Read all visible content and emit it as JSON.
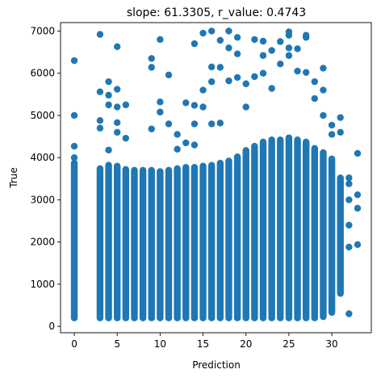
{
  "chart_data": {
    "type": "scatter",
    "title": "slope: 61.3305, r_value: 0.4743",
    "xlabel": "Prediction",
    "ylabel": "True",
    "xlim": [
      -1.6,
      34.6
    ],
    "ylim": [
      -150,
      7200
    ],
    "xticks": [
      0,
      5,
      10,
      15,
      20,
      25,
      30
    ],
    "yticks": [
      0,
      1000,
      2000,
      3000,
      4000,
      5000,
      6000,
      7000
    ],
    "xtick_labels": [
      "0",
      "5",
      "10",
      "15",
      "20",
      "25",
      "30"
    ],
    "ytick_labels": [
      "0",
      "1000",
      "2000",
      "3000",
      "4000",
      "5000",
      "6000",
      "7000"
    ],
    "grid": false,
    "marker_color": "#1f77b4",
    "columns": [
      {
        "x": 0,
        "low": 120,
        "high": 3950
      },
      {
        "x": 3,
        "low": 120,
        "high": 3820
      },
      {
        "x": 4,
        "low": 120,
        "high": 3900
      },
      {
        "x": 5,
        "low": 120,
        "high": 3880
      },
      {
        "x": 6,
        "low": 120,
        "high": 3800
      },
      {
        "x": 7,
        "low": 120,
        "high": 3780
      },
      {
        "x": 8,
        "low": 120,
        "high": 3780
      },
      {
        "x": 9,
        "low": 120,
        "high": 3780
      },
      {
        "x": 10,
        "low": 120,
        "high": 3750
      },
      {
        "x": 11,
        "low": 120,
        "high": 3780
      },
      {
        "x": 12,
        "low": 120,
        "high": 3820
      },
      {
        "x": 13,
        "low": 120,
        "high": 3850
      },
      {
        "x": 14,
        "low": 120,
        "high": 3850
      },
      {
        "x": 15,
        "low": 120,
        "high": 3880
      },
      {
        "x": 16,
        "low": 120,
        "high": 3900
      },
      {
        "x": 17,
        "low": 120,
        "high": 3950
      },
      {
        "x": 18,
        "low": 120,
        "high": 4000
      },
      {
        "x": 19,
        "low": 120,
        "high": 4100
      },
      {
        "x": 20,
        "low": 120,
        "high": 4250
      },
      {
        "x": 21,
        "low": 120,
        "high": 4350
      },
      {
        "x": 22,
        "low": 120,
        "high": 4450
      },
      {
        "x": 23,
        "low": 120,
        "high": 4500
      },
      {
        "x": 24,
        "low": 120,
        "high": 4500
      },
      {
        "x": 25,
        "low": 120,
        "high": 4550
      },
      {
        "x": 26,
        "low": 120,
        "high": 4500
      },
      {
        "x": 27,
        "low": 120,
        "high": 4450
      },
      {
        "x": 28,
        "low": 120,
        "high": 4300
      },
      {
        "x": 29,
        "low": 150,
        "high": 4200
      },
      {
        "x": 30,
        "low": 250,
        "high": 4050
      },
      {
        "x": 31,
        "low": 700,
        "high": 3600
      }
    ],
    "points": [
      {
        "x": 0,
        "y": 6300
      },
      {
        "x": 0,
        "y": 5000
      },
      {
        "x": 0,
        "y": 4270
      },
      {
        "x": 0,
        "y": 4000
      },
      {
        "x": 3,
        "y": 6920
      },
      {
        "x": 3,
        "y": 5560
      },
      {
        "x": 3,
        "y": 4880
      },
      {
        "x": 3,
        "y": 4700
      },
      {
        "x": 4,
        "y": 5800
      },
      {
        "x": 4,
        "y": 5480
      },
      {
        "x": 4,
        "y": 5250
      },
      {
        "x": 4,
        "y": 4180
      },
      {
        "x": 5,
        "y": 6630
      },
      {
        "x": 5,
        "y": 5620
      },
      {
        "x": 5,
        "y": 5200
      },
      {
        "x": 5,
        "y": 4830
      },
      {
        "x": 5,
        "y": 4600
      },
      {
        "x": 6,
        "y": 5250
      },
      {
        "x": 6,
        "y": 4460
      },
      {
        "x": 9,
        "y": 6350
      },
      {
        "x": 9,
        "y": 6140
      },
      {
        "x": 9,
        "y": 4680
      },
      {
        "x": 10,
        "y": 6800
      },
      {
        "x": 10,
        "y": 5320
      },
      {
        "x": 10,
        "y": 5080
      },
      {
        "x": 11,
        "y": 5960
      },
      {
        "x": 11,
        "y": 4800
      },
      {
        "x": 12,
        "y": 4550
      },
      {
        "x": 12,
        "y": 4200
      },
      {
        "x": 13,
        "y": 5300
      },
      {
        "x": 13,
        "y": 4350
      },
      {
        "x": 14,
        "y": 6700
      },
      {
        "x": 14,
        "y": 5240
      },
      {
        "x": 14,
        "y": 4800
      },
      {
        "x": 14,
        "y": 4300
      },
      {
        "x": 15,
        "y": 6950
      },
      {
        "x": 15,
        "y": 5600
      },
      {
        "x": 15,
        "y": 5200
      },
      {
        "x": 16,
        "y": 7000
      },
      {
        "x": 16,
        "y": 6150
      },
      {
        "x": 16,
        "y": 5800
      },
      {
        "x": 16,
        "y": 4800
      },
      {
        "x": 17,
        "y": 6780
      },
      {
        "x": 17,
        "y": 6140
      },
      {
        "x": 17,
        "y": 4820
      },
      {
        "x": 18,
        "y": 7000
      },
      {
        "x": 18,
        "y": 6600
      },
      {
        "x": 18,
        "y": 5820
      },
      {
        "x": 19,
        "y": 6850
      },
      {
        "x": 19,
        "y": 6460
      },
      {
        "x": 19,
        "y": 5900
      },
      {
        "x": 20,
        "y": 5750
      },
      {
        "x": 20,
        "y": 5200
      },
      {
        "x": 21,
        "y": 6800
      },
      {
        "x": 21,
        "y": 5920
      },
      {
        "x": 22,
        "y": 6760
      },
      {
        "x": 22,
        "y": 6420
      },
      {
        "x": 22,
        "y": 6000
      },
      {
        "x": 23,
        "y": 6540
      },
      {
        "x": 23,
        "y": 5640
      },
      {
        "x": 24,
        "y": 6750
      },
      {
        "x": 24,
        "y": 6220
      },
      {
        "x": 25,
        "y": 6980
      },
      {
        "x": 25,
        "y": 6900
      },
      {
        "x": 25,
        "y": 6600
      },
      {
        "x": 25,
        "y": 6420
      },
      {
        "x": 26,
        "y": 6580
      },
      {
        "x": 26,
        "y": 6050
      },
      {
        "x": 27,
        "y": 6900
      },
      {
        "x": 27,
        "y": 6850
      },
      {
        "x": 27,
        "y": 6020
      },
      {
        "x": 28,
        "y": 5800
      },
      {
        "x": 28,
        "y": 5400
      },
      {
        "x": 29,
        "y": 6120
      },
      {
        "x": 29,
        "y": 5600
      },
      {
        "x": 29,
        "y": 5000
      },
      {
        "x": 30,
        "y": 4770
      },
      {
        "x": 30,
        "y": 4550
      },
      {
        "x": 31,
        "y": 4950
      },
      {
        "x": 31,
        "y": 4600
      },
      {
        "x": 32,
        "y": 3520
      },
      {
        "x": 32,
        "y": 3380
      },
      {
        "x": 32,
        "y": 3000
      },
      {
        "x": 32,
        "y": 2400
      },
      {
        "x": 32,
        "y": 1880
      },
      {
        "x": 32,
        "y": 300
      },
      {
        "x": 33,
        "y": 4100
      },
      {
        "x": 33,
        "y": 3120
      },
      {
        "x": 33,
        "y": 2800
      },
      {
        "x": 33,
        "y": 1940
      }
    ]
  }
}
